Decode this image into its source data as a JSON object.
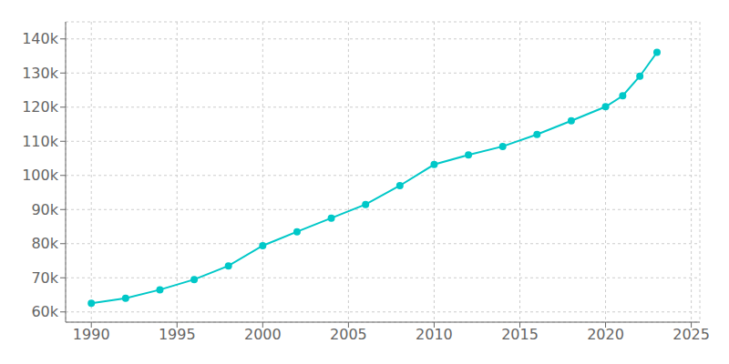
{
  "chart_data": {
    "type": "line",
    "x": [
      1990,
      1992,
      1994,
      1996,
      1998,
      2000,
      2002,
      2004,
      2006,
      2008,
      2010,
      2012,
      2014,
      2016,
      2018,
      2020,
      2021,
      2022,
      2023
    ],
    "series": [
      {
        "color": "#00c8c8",
        "marker": "circle",
        "values": [
          62530,
          64000,
          66500,
          69500,
          73500,
          79413,
          83500,
          87500,
          91500,
          97000,
          103190,
          106000,
          108500,
          112000,
          116000,
          120131,
          123328,
          129068,
          136066
        ]
      }
    ],
    "xlim": [
      1988.5,
      2025.5
    ],
    "ylim": [
      57000,
      145000
    ],
    "xticks": [
      1990,
      1995,
      2000,
      2005,
      2010,
      2015,
      2020,
      2025
    ],
    "yticks": [
      {
        "value": 60000,
        "label": "60k"
      },
      {
        "value": 70000,
        "label": "70k"
      },
      {
        "value": 80000,
        "label": "80k"
      },
      {
        "value": 90000,
        "label": "90k"
      },
      {
        "value": 100000,
        "label": "100k"
      },
      {
        "value": 110000,
        "label": "110k"
      },
      {
        "value": 120000,
        "label": "120k"
      },
      {
        "value": 130000,
        "label": "130k"
      },
      {
        "value": 140000,
        "label": "140k"
      }
    ],
    "grid": true
  }
}
